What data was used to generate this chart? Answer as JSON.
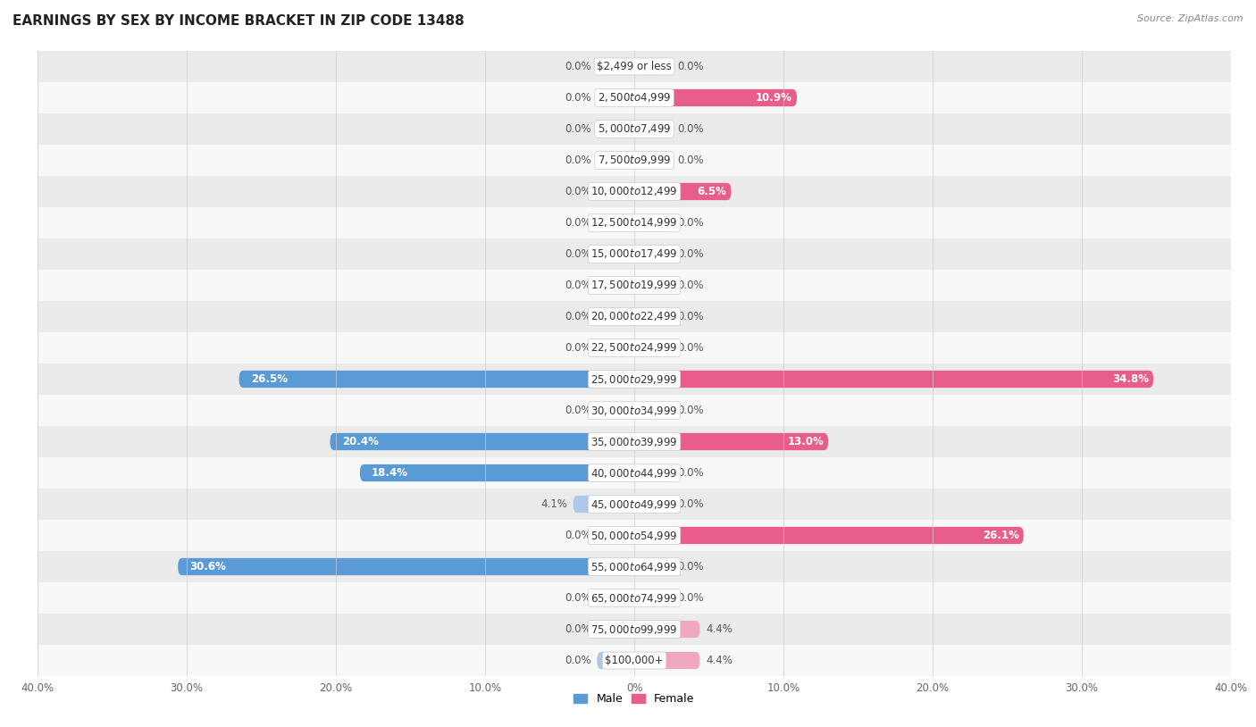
{
  "title": "EARNINGS BY SEX BY INCOME BRACKET IN ZIP CODE 13488",
  "source": "Source: ZipAtlas.com",
  "categories": [
    "$2,499 or less",
    "$2,500 to $4,999",
    "$5,000 to $7,499",
    "$7,500 to $9,999",
    "$10,000 to $12,499",
    "$12,500 to $14,999",
    "$15,000 to $17,499",
    "$17,500 to $19,999",
    "$20,000 to $22,499",
    "$22,500 to $24,999",
    "$25,000 to $29,999",
    "$30,000 to $34,999",
    "$35,000 to $39,999",
    "$40,000 to $44,999",
    "$45,000 to $49,999",
    "$50,000 to $54,999",
    "$55,000 to $64,999",
    "$65,000 to $74,999",
    "$75,000 to $99,999",
    "$100,000+"
  ],
  "male_values": [
    0.0,
    0.0,
    0.0,
    0.0,
    0.0,
    0.0,
    0.0,
    0.0,
    0.0,
    0.0,
    26.5,
    0.0,
    20.4,
    18.4,
    4.1,
    0.0,
    30.6,
    0.0,
    0.0,
    0.0
  ],
  "female_values": [
    0.0,
    10.9,
    0.0,
    0.0,
    6.5,
    0.0,
    0.0,
    0.0,
    0.0,
    0.0,
    34.8,
    0.0,
    13.0,
    0.0,
    0.0,
    26.1,
    0.0,
    0.0,
    4.4,
    4.4
  ],
  "male_color_strong": "#5b9bd5",
  "male_color_weak": "#aec8e8",
  "female_color_strong": "#e85d8a",
  "female_color_weak": "#f0a8bf",
  "xlim": 40.0,
  "stub_size": 2.5,
  "row_alt_color": "#ebebeb",
  "row_main_color": "#f8f8f8",
  "title_fontsize": 11,
  "label_fontsize": 8.5,
  "cat_fontsize": 8.5,
  "bar_height": 0.55,
  "strong_threshold": 5.0
}
